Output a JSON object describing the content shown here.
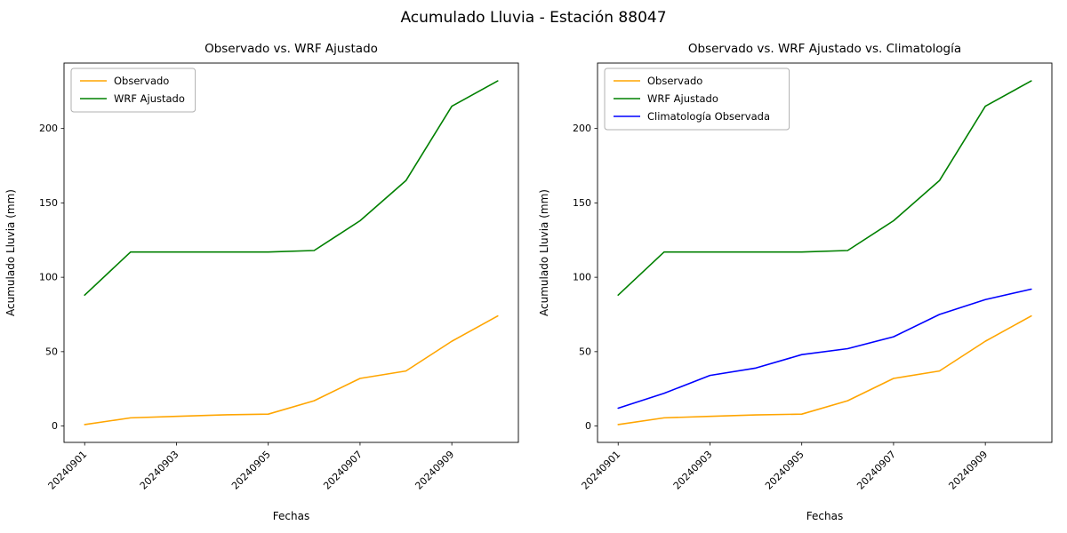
{
  "figure": {
    "title": "Acumulado Lluvia - Estación 88047"
  },
  "chart_data": [
    {
      "type": "line",
      "title": "Observado vs. WRF Ajustado",
      "xlabel": "Fechas",
      "ylabel": "Acumulado Lluvia (mm)",
      "x": [
        "20240901",
        "20240902",
        "20240903",
        "20240904",
        "20240905",
        "20240906",
        "20240907",
        "20240908",
        "20240909",
        "20240910"
      ],
      "xtick_indices": [
        0,
        2,
        4,
        6,
        8
      ],
      "yticks": [
        0,
        50,
        100,
        150,
        200
      ],
      "ylim": [
        -11,
        244
      ],
      "grid": false,
      "legend_position": "upper-left",
      "series": [
        {
          "name": "Observado",
          "color": "#FFA500",
          "values": [
            1,
            5.5,
            6.5,
            7.5,
            8,
            17,
            32,
            37,
            57,
            74
          ]
        },
        {
          "name": "WRF Ajustado",
          "color": "#008000",
          "values": [
            88,
            117,
            117,
            117,
            117,
            118,
            138,
            165,
            215,
            232
          ]
        }
      ]
    },
    {
      "type": "line",
      "title": "Observado vs. WRF Ajustado vs. Climatología",
      "xlabel": "Fechas",
      "ylabel": "Acumulado Lluvia (mm)",
      "x": [
        "20240901",
        "20240902",
        "20240903",
        "20240904",
        "20240905",
        "20240906",
        "20240907",
        "20240908",
        "20240909",
        "20240910"
      ],
      "xtick_indices": [
        0,
        2,
        4,
        6,
        8
      ],
      "yticks": [
        0,
        50,
        100,
        150,
        200
      ],
      "ylim": [
        -11,
        244
      ],
      "grid": false,
      "legend_position": "upper-left",
      "series": [
        {
          "name": "Observado",
          "color": "#FFA500",
          "values": [
            1,
            5.5,
            6.5,
            7.5,
            8,
            17,
            32,
            37,
            57,
            74
          ]
        },
        {
          "name": "WRF Ajustado",
          "color": "#008000",
          "values": [
            88,
            117,
            117,
            117,
            117,
            118,
            138,
            165,
            215,
            232
          ]
        },
        {
          "name": "Climatología Observada",
          "color": "#0000FF",
          "values": [
            12,
            22,
            34,
            39,
            48,
            52,
            60,
            75,
            85,
            92
          ]
        }
      ]
    }
  ]
}
